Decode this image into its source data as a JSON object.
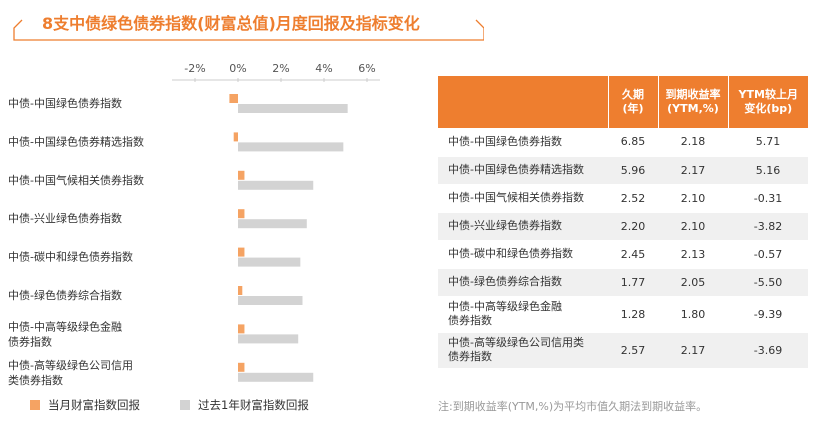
{
  "title": "8支中债绿色债券指数(财富总值)月度回报及指标变化",
  "colors": {
    "accent": "#ee7e2f",
    "monthly": "#f5a363",
    "yearly": "#d3d3d3"
  },
  "chart_data": {
    "type": "bar",
    "orientation": "horizontal",
    "categories": [
      "中债-中国绿色债券指数",
      "中债-中国绿色债券精选指数",
      "中债-中国气候相关债券指数",
      "中债-兴业绿色债券指数",
      "中债-碳中和绿色债券指数",
      "中债-绿色债券综合指数",
      "中债-中高等级绿色金融债券指数",
      "中债-高等级绿色公司信用类债券指数"
    ],
    "category_lines": [
      [
        "中债-中国绿色债券指数"
      ],
      [
        "中债-中国绿色债券精选指数"
      ],
      [
        "中债-中国气候相关债券指数"
      ],
      [
        "中债-兴业绿色债券指数"
      ],
      [
        "中债-碳中和绿色债券指数"
      ],
      [
        "中债-绿色债券综合指数"
      ],
      [
        "中债-中高等级绿色金融",
        "债券指数"
      ],
      [
        "中债-高等级绿色公司信用",
        "类债券指数"
      ]
    ],
    "series": [
      {
        "name": "当月财富指数回报",
        "values": [
          -0.4,
          -0.2,
          0.3,
          0.3,
          0.3,
          0.2,
          0.3,
          0.3
        ]
      },
      {
        "name": "过去1年财富指数回报",
        "values": [
          5.1,
          4.9,
          3.5,
          3.2,
          2.9,
          3.0,
          2.8,
          3.5
        ]
      }
    ],
    "xlim": [
      -3,
      6.6
    ],
    "xticks": [
      "-2%",
      "0%",
      "2%",
      "4%",
      "6%"
    ],
    "xtick_values": [
      -2,
      0,
      2,
      4,
      6
    ],
    "legend_position": "bottom"
  },
  "table": {
    "headers": [
      [
        ""
      ],
      [
        "久期",
        "(年)"
      ],
      [
        "到期收益率",
        "(YTM,%)"
      ],
      [
        "YTM较上月",
        "变化(bp)"
      ]
    ],
    "rows": [
      {
        "name": [
          "中债-中国绿色债券指数"
        ],
        "duration": "6.85",
        "ytm": "2.18",
        "change": "5.71"
      },
      {
        "name": [
          "中债-中国绿色债券精选指数"
        ],
        "duration": "5.96",
        "ytm": "2.17",
        "change": "5.16"
      },
      {
        "name": [
          "中债-中国气候相关债券指数"
        ],
        "duration": "2.52",
        "ytm": "2.10",
        "change": "-0.31"
      },
      {
        "name": [
          "中债-兴业绿色债券指数"
        ],
        "duration": "2.20",
        "ytm": "2.10",
        "change": "-3.82"
      },
      {
        "name": [
          "中债-碳中和绿色债券指数"
        ],
        "duration": "2.45",
        "ytm": "2.13",
        "change": "-0.57"
      },
      {
        "name": [
          "中债-绿色债券综合指数"
        ],
        "duration": "1.77",
        "ytm": "2.05",
        "change": "-5.50"
      },
      {
        "name": [
          "中债-中高等级绿色金融",
          "债券指数"
        ],
        "duration": "1.28",
        "ytm": "1.80",
        "change": "-9.39"
      },
      {
        "name": [
          "中债-高等级绿色公司信用类",
          "债券指数"
        ],
        "duration": "2.57",
        "ytm": "2.17",
        "change": "-3.69"
      }
    ]
  },
  "note": "注:到期收益率(YTM,%)为平均市值久期法到期收益率。"
}
